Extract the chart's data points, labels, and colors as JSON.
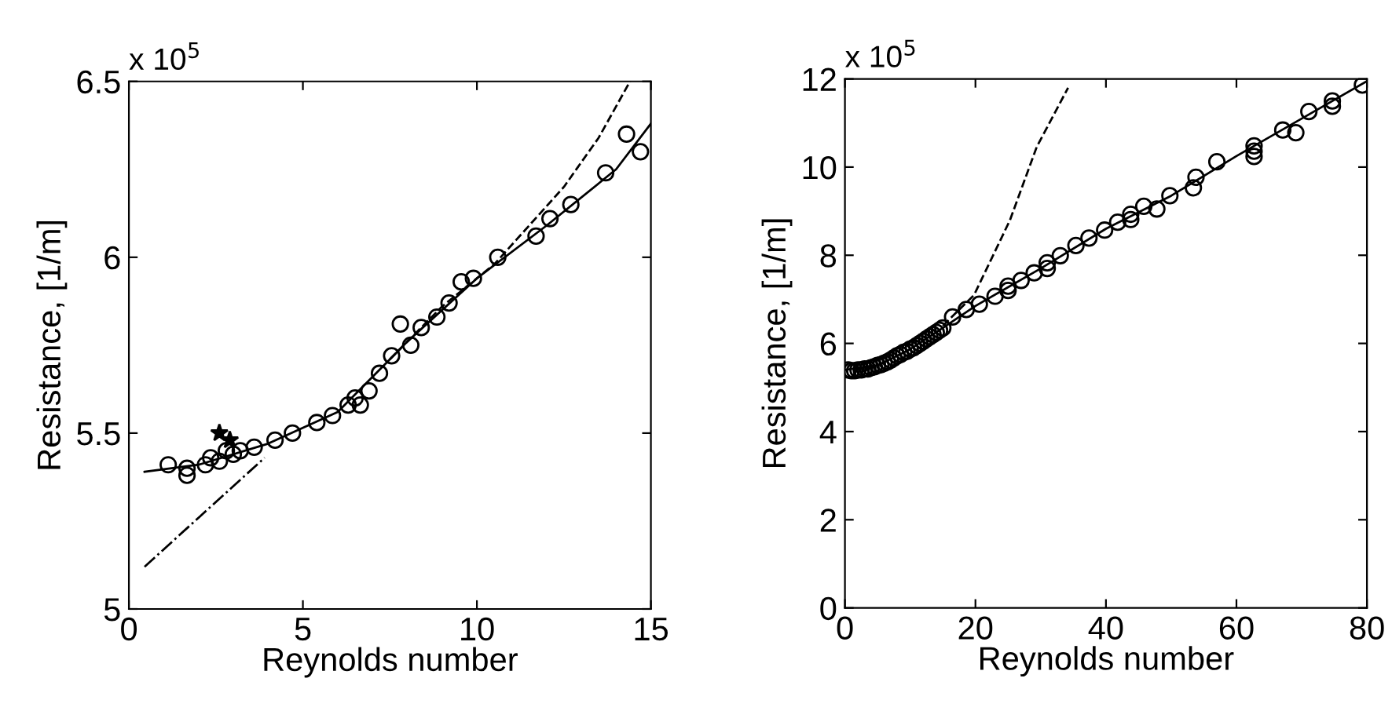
{
  "chart_data": [
    {
      "type": "scatter",
      "xlabel": "Reynolds number",
      "ylabel": "Resistance, [1/m]",
      "annotations": [
        "x 10$^{5}$"
      ],
      "xlim": [
        0,
        15
      ],
      "ylim": [
        5,
        6.5
      ],
      "xticks": [
        0,
        5,
        10,
        15
      ],
      "yticks": [
        5,
        5.5,
        6,
        6.5
      ],
      "grid": false,
      "legend": false,
      "series": [
        {
          "marker": "circle",
          "color": "#000000",
          "x": [
            1.13,
            1.67,
            1.67,
            2.2,
            2.35,
            2.6,
            2.8,
            3.0,
            3.2,
            3.6,
            4.2,
            4.7,
            5.4,
            5.85,
            6.3,
            6.5,
            6.65,
            6.9,
            7.2,
            7.55,
            7.8,
            8.1,
            8.4,
            8.85,
            9.2,
            9.55,
            9.9,
            10.6,
            11.7,
            12.1,
            12.7,
            13.7,
            14.3,
            14.7
          ],
          "values": [
            5.41,
            5.4,
            5.38,
            5.41,
            5.43,
            5.42,
            5.45,
            5.44,
            5.45,
            5.46,
            5.48,
            5.5,
            5.53,
            5.55,
            5.58,
            5.6,
            5.58,
            5.62,
            5.67,
            5.72,
            5.81,
            5.75,
            5.8,
            5.83,
            5.87,
            5.93,
            5.94,
            6.0,
            6.06,
            6.11,
            6.15,
            6.24,
            6.35,
            6.3
          ]
        },
        {
          "marker": "star",
          "color": "#000000",
          "x": [
            2.6,
            2.9
          ],
          "values": [
            5.5,
            5.48
          ]
        },
        {
          "type": "line",
          "line_style": "solid",
          "marker": "none",
          "color": "#000000",
          "x": [
            0.45,
            2,
            4,
            6,
            8,
            10,
            12,
            14,
            15
          ],
          "values": [
            5.39,
            5.41,
            5.47,
            5.56,
            5.76,
            5.94,
            6.09,
            6.25,
            6.38
          ]
        },
        {
          "type": "line",
          "line_style": "dashed",
          "marker": "none",
          "color": "#000000",
          "x": [
            7.5,
            9,
            10.5,
            11.5,
            12.5,
            13.5,
            14.4
          ],
          "values": [
            5.71,
            5.86,
            5.98,
            6.09,
            6.2,
            6.34,
            6.5
          ]
        },
        {
          "type": "line",
          "line_style": "dashdot",
          "marker": "none",
          "color": "#000000",
          "x": [
            0.45,
            3.9
          ],
          "values": [
            5.12,
            5.43
          ]
        }
      ]
    },
    {
      "type": "scatter",
      "xlabel": "Reynolds number",
      "ylabel": "Resistance, [1/m]",
      "annotations": [
        "x 10$^{5}$"
      ],
      "xlim": [
        0,
        80
      ],
      "ylim": [
        0,
        12
      ],
      "xticks": [
        0,
        20,
        40,
        60,
        80
      ],
      "yticks": [
        0,
        2,
        4,
        6,
        8,
        10,
        12
      ],
      "grid": false,
      "legend": false,
      "series": [
        {
          "marker": "circle",
          "color": "#000000",
          "x": [
            0.5,
            1,
            1.5,
            2,
            2.5,
            3,
            3.5,
            4,
            4.5,
            5,
            5.5,
            6,
            6.5,
            7,
            7.5,
            8,
            8.5,
            9,
            9.5,
            10,
            10.5,
            11,
            11.5,
            12,
            12.5,
            13,
            13.5,
            14,
            14.5,
            15,
            16.5,
            18.6,
            20.6,
            23.0,
            25.0,
            25.0,
            27.0,
            29.0,
            31.0,
            31.0,
            33.0,
            35.4,
            37.4,
            39.8,
            41.8,
            43.8,
            43.8,
            45.8,
            47.8,
            49.8,
            53.4,
            53.8,
            57.0,
            62.7,
            62.7,
            62.7,
            67.1,
            69.1,
            71.1,
            74.7,
            74.7,
            79.3
          ],
          "values": [
            5.4,
            5.38,
            5.38,
            5.4,
            5.4,
            5.42,
            5.42,
            5.45,
            5.47,
            5.5,
            5.52,
            5.55,
            5.58,
            5.62,
            5.67,
            5.72,
            5.75,
            5.8,
            5.82,
            5.87,
            5.9,
            5.95,
            6.0,
            6.05,
            6.1,
            6.15,
            6.2,
            6.25,
            6.3,
            6.35,
            6.6,
            6.77,
            6.89,
            7.07,
            7.3,
            7.2,
            7.43,
            7.6,
            7.83,
            7.7,
            7.99,
            8.22,
            8.39,
            8.57,
            8.75,
            8.93,
            8.81,
            9.11,
            9.05,
            9.35,
            9.53,
            9.77,
            10.12,
            10.48,
            10.36,
            10.24,
            10.84,
            10.78,
            11.26,
            11.5,
            11.38,
            11.86
          ]
        },
        {
          "type": "line",
          "line_style": "solid",
          "marker": "none",
          "color": "#000000",
          "x": [
            0,
            5,
            10,
            15,
            20,
            30,
            40,
            50,
            60,
            70,
            80
          ],
          "values": [
            5.4,
            5.5,
            5.87,
            6.35,
            6.85,
            7.7,
            8.6,
            9.35,
            10.25,
            11.1,
            11.95
          ]
        },
        {
          "type": "line",
          "line_style": "dashed",
          "marker": "none",
          "color": "#000000",
          "x": [
            15,
            19.8,
            25.3,
            29.4,
            34.2
          ],
          "values": [
            6.4,
            7.1,
            8.8,
            10.46,
            11.8
          ]
        }
      ]
    }
  ]
}
